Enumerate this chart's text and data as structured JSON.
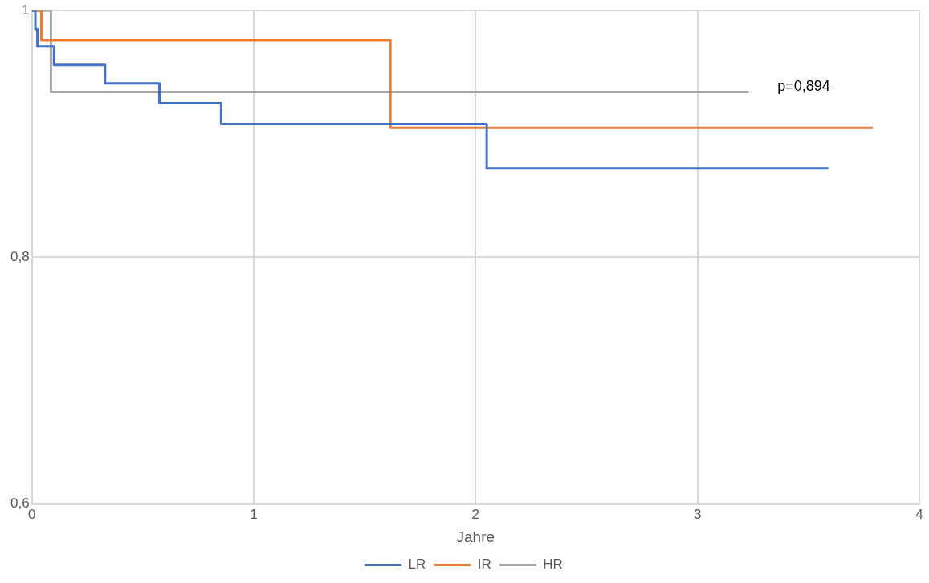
{
  "chart_data": {
    "type": "step",
    "xlabel": "Jahre",
    "annotations": [
      "p=0,894"
    ],
    "xlim": [
      0,
      4
    ],
    "xticks": [
      0,
      1,
      2,
      3,
      4
    ],
    "ylim": [
      0.6,
      1
    ],
    "yticks": [
      {
        "value": 0.6,
        "label": "0,6"
      },
      {
        "value": 0.8,
        "label": "0,8"
      },
      {
        "value": 1,
        "label": "1"
      }
    ],
    "grid": true,
    "legend": "bottom",
    "marker": "none",
    "line_style": "solid",
    "series": [
      {
        "name": "LR",
        "color": "#4472c4",
        "x": [
          0,
          0.016,
          0.025,
          0.1,
          0.33,
          0.575,
          0.853,
          2.05,
          3.59
        ],
        "values": [
          1,
          0.985,
          0.971,
          0.956,
          0.941,
          0.925,
          0.908,
          0.872,
          0.872
        ]
      },
      {
        "name": "IR",
        "color": "#ed7d31",
        "x": [
          0,
          0.043,
          1.616,
          3.79
        ],
        "values": [
          1,
          0.976,
          0.905,
          0.905
        ]
      },
      {
        "name": "HR",
        "color": "#a5a5a5",
        "x": [
          0,
          0.086,
          3.23
        ],
        "values": [
          1,
          0.934,
          0.934
        ]
      }
    ]
  }
}
